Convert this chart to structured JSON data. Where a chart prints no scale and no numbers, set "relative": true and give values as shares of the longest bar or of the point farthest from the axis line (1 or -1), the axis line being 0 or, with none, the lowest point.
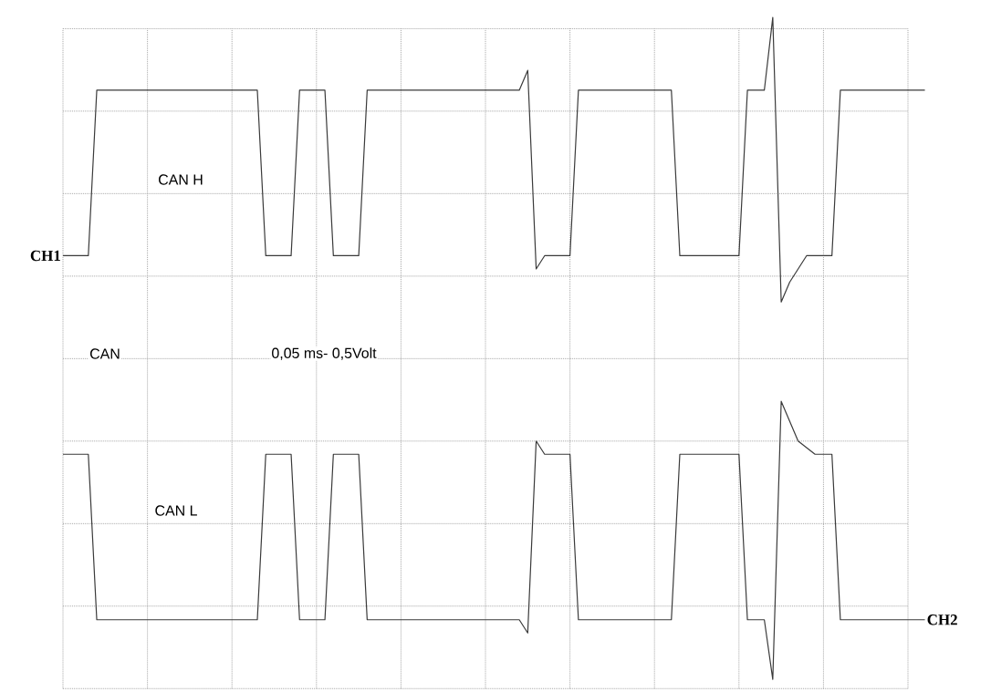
{
  "chart_data": {
    "type": "line",
    "relative": true,
    "grid": true,
    "categories": [
      null,
      null,
      null,
      null,
      null,
      null,
      null,
      null,
      null,
      null,
      null,
      null,
      null,
      null,
      null,
      null,
      null,
      null,
      null,
      null,
      null,
      null,
      null,
      null,
      null,
      null,
      null,
      null,
      null,
      null,
      null,
      null,
      null,
      null,
      null,
      null,
      null,
      null,
      null,
      null,
      null,
      null,
      null,
      null,
      null,
      null,
      null,
      null,
      null,
      null,
      null,
      null,
      null,
      null,
      null,
      null,
      null,
      null,
      null,
      null,
      null,
      null,
      null,
      null,
      null,
      null,
      null,
      null,
      null,
      null,
      null,
      null,
      null,
      null,
      null,
      null,
      null,
      null,
      null,
      null,
      null,
      null,
      null,
      null,
      null,
      null,
      null,
      null,
      null,
      null,
      null,
      null,
      null,
      null,
      null,
      null,
      null,
      null,
      null,
      null,
      null,
      null,
      null
    ],
    "series": [
      {
        "name": "CH1",
        "color": "#3a3a3a",
        "values": [
          0.64,
          0.64,
          0.64,
          0.64,
          0.89,
          0.89,
          0.89,
          0.89,
          0.89,
          0.89,
          0.89,
          0.89,
          0.89,
          0.89,
          0.89,
          0.89,
          0.89,
          0.89,
          0.89,
          0.89,
          0.89,
          0.89,
          0.89,
          0.89,
          0.64,
          0.64,
          0.64,
          0.64,
          0.89,
          0.89,
          0.89,
          0.89,
          0.64,
          0.64,
          0.64,
          0.64,
          0.89,
          0.89,
          0.89,
          0.89,
          0.89,
          0.89,
          0.89,
          0.89,
          0.89,
          0.89,
          0.89,
          0.89,
          0.89,
          0.89,
          0.89,
          0.89,
          0.89,
          0.89,
          0.89,
          0.92,
          0.62,
          0.64,
          0.64,
          0.64,
          0.64,
          0.89,
          0.89,
          0.89,
          0.89,
          0.89,
          0.89,
          0.89,
          0.89,
          0.89,
          0.89,
          0.89,
          0.89,
          0.64,
          0.64,
          0.64,
          0.64,
          0.64,
          0.64,
          0.64,
          0.64,
          0.89,
          0.89,
          0.89,
          1,
          0.57,
          0.6,
          0.62,
          0.64,
          0.64,
          0.64,
          0.64,
          0.89,
          0.89,
          0.89,
          0.89,
          0.89,
          0.89,
          0.89,
          0.89,
          0.89,
          0.89,
          0.89
        ]
      },
      {
        "name": "CH2",
        "color": "#3a3a3a",
        "values": [
          0.34,
          0.34,
          0.34,
          0.34,
          0.09,
          0.09,
          0.09,
          0.09,
          0.09,
          0.09,
          0.09,
          0.09,
          0.09,
          0.09,
          0.09,
          0.09,
          0.09,
          0.09,
          0.09,
          0.09,
          0.09,
          0.09,
          0.09,
          0.09,
          0.34,
          0.34,
          0.34,
          0.34,
          0.09,
          0.09,
          0.09,
          0.09,
          0.34,
          0.34,
          0.34,
          0.34,
          0.09,
          0.09,
          0.09,
          0.09,
          0.09,
          0.09,
          0.09,
          0.09,
          0.09,
          0.09,
          0.09,
          0.09,
          0.09,
          0.09,
          0.09,
          0.09,
          0.09,
          0.09,
          0.09,
          0.07,
          0.36,
          0.34,
          0.34,
          0.34,
          0.34,
          0.09,
          0.09,
          0.09,
          0.09,
          0.09,
          0.09,
          0.09,
          0.09,
          0.09,
          0.09,
          0.09,
          0.09,
          0.34,
          0.34,
          0.34,
          0.34,
          0.34,
          0.34,
          0.34,
          0.34,
          0.09,
          0.09,
          0.09,
          0,
          0.42,
          0.39,
          0.36,
          0.35,
          0.34,
          0.34,
          0.34,
          0.09,
          0.09,
          0.09,
          0.09,
          0.09,
          0.09,
          0.09,
          0.09,
          0.09,
          0.09,
          0.09
        ]
      }
    ],
    "annotations": [
      "CAN H",
      "CAN",
      "0,05 ms- 0,5Volt",
      "CAN L"
    ]
  }
}
